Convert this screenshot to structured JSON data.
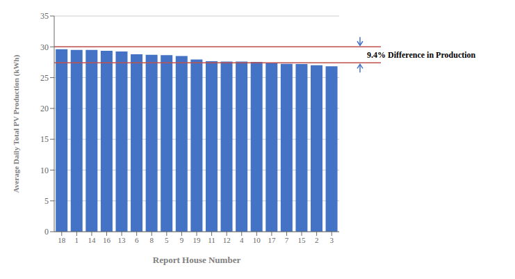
{
  "chart_data": {
    "type": "bar",
    "categories": [
      "18",
      "1",
      "14",
      "16",
      "13",
      "6",
      "8",
      "5",
      "9",
      "19",
      "11",
      "12",
      "4",
      "10",
      "17",
      "7",
      "15",
      "2",
      "3"
    ],
    "values": [
      29.6,
      29.5,
      29.5,
      29.35,
      29.25,
      28.8,
      28.7,
      28.65,
      28.5,
      27.95,
      27.65,
      27.6,
      27.6,
      27.55,
      27.35,
      27.25,
      27.2,
      27.0,
      26.85
    ],
    "color": "#4472C4",
    "xlabel": "Report House Number",
    "ylabel": "Average Daily Total PV Production (kWh)",
    "ylim": [
      0,
      35
    ],
    "yticks": [
      0,
      5,
      10,
      15,
      20,
      25,
      30,
      35
    ],
    "grid": true,
    "hlines": [
      {
        "value": 30.0,
        "color": "#C0504D"
      },
      {
        "value": 27.4,
        "color": "#C0504D"
      }
    ],
    "annotation": {
      "text": "9.4% Difference in Production",
      "color": "#4472C4"
    }
  }
}
